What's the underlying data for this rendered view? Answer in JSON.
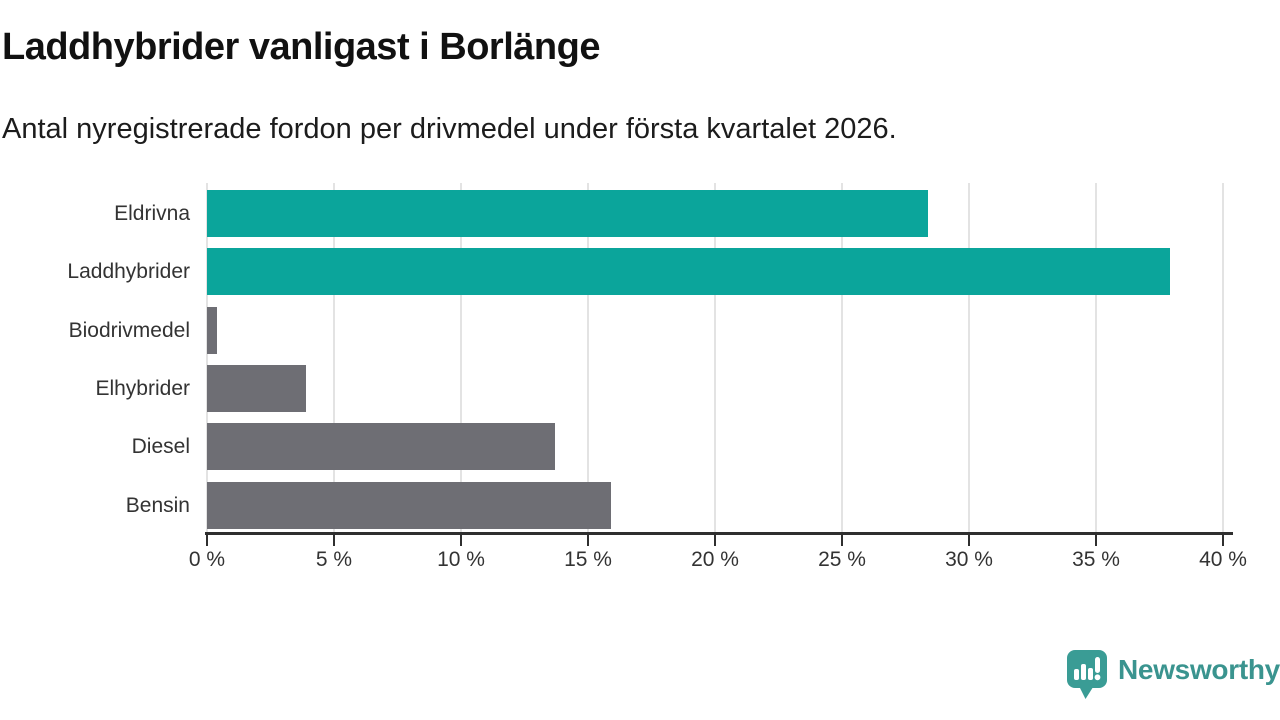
{
  "header": {
    "title": "Laddhybrider vanligast i Borlänge",
    "subtitle": "Antal nyregistrerade fordon per drivmedel under första kvartalet 2026."
  },
  "chart_data": {
    "type": "bar",
    "orientation": "horizontal",
    "title": "Laddhybrider vanligast i Borlänge",
    "subtitle": "Antal nyregistrerade fordon per drivmedel under första kvartalet 2026.",
    "categories": [
      "Eldrivna",
      "Laddhybrider",
      "Biodrivmedel",
      "Elhybrider",
      "Diesel",
      "Bensin"
    ],
    "values": [
      28.4,
      37.9,
      0.4,
      3.9,
      13.7,
      15.9
    ],
    "unit": "%",
    "xlabel": "",
    "ylabel": "",
    "xlim": [
      0,
      40
    ],
    "x_tick_step": 5,
    "x_tick_labels": [
      "0 %",
      "5 %",
      "10 %",
      "15 %",
      "20 %",
      "25 %",
      "30 %",
      "35 %",
      "40 %"
    ],
    "bar_colors": [
      "#0ba59b",
      "#0ba59b",
      "#6e6e74",
      "#6e6e74",
      "#6e6e74",
      "#6e6e74"
    ],
    "grid": true,
    "legend_position": "none"
  },
  "colors": {
    "highlight_teal": "#0ba59b",
    "neutral_gray": "#6e6e74",
    "gridline": "#e3e3e3",
    "axis_line": "#2f2f2f",
    "axis_text": "#333333",
    "title_text": "#111111",
    "subtitle_text": "#1c1c1c",
    "brand_teal": "#3a948f",
    "background": "#ffffff"
  },
  "footer": {
    "brand": "Newsworthy"
  }
}
